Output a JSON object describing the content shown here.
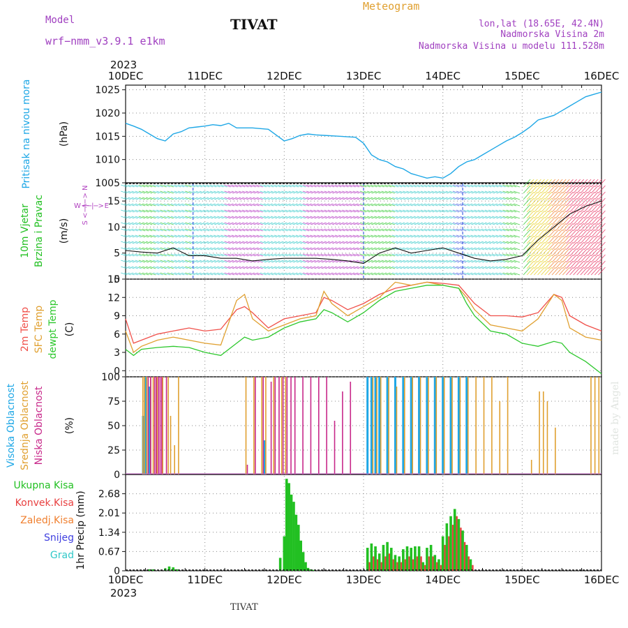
{
  "header": {
    "model_label": "Model",
    "model_name": "wrf−nmm_v3.9.1  e1km",
    "station": "TIVAT",
    "meteogram": "Meteogram",
    "lonlat": "lon,lat (18.65E, 42.4N)",
    "elev": "Nadmorska Visina 2m",
    "elev_model": "Nadmorska Visina u modelu 111.528m",
    "year": "2023",
    "footer_station": "TIVAT",
    "credit": "made by Angel"
  },
  "colors": {
    "pressure": "#1ea7e6",
    "temp": "#f0504a",
    "sfc": "#e0a030",
    "dew": "#2ec82e",
    "high": "#1ea7e6",
    "mid": "#e0a030",
    "low": "#c8288a",
    "precip_total": "#22c022",
    "precip_conv": "#e84040",
    "precip_frozen": "#f08030",
    "precip_snow": "#4040e0",
    "precip_grad": "#30c8c8",
    "wind_label": "#22c022",
    "wind_sub": "#b040c0",
    "purple_text": "#a040c0",
    "orange_text": "#e0a030"
  },
  "chart_data": [
    {
      "id": "pressure",
      "type": "line",
      "ylabel_lines": [
        "Pritisak na nivou mora",
        "(hPa)"
      ],
      "ylim": [
        1005,
        1026
      ],
      "yticks": [
        "1005",
        "1010",
        "1015",
        "1020",
        "1025"
      ],
      "x": [
        0,
        0.1,
        0.2,
        0.3,
        0.4,
        0.5,
        0.6,
        0.7,
        0.8,
        0.9,
        1.0,
        1.1,
        1.2,
        1.3,
        1.4,
        1.5,
        1.6,
        1.8,
        2.0,
        2.1,
        2.2,
        2.3,
        2.4,
        2.5,
        2.7,
        2.9,
        3.0,
        3.1,
        3.2,
        3.3,
        3.4,
        3.5,
        3.6,
        3.7,
        3.8,
        3.9,
        4.0,
        4.1,
        4.2,
        4.3,
        4.4,
        4.5,
        4.6,
        4.7,
        4.8,
        4.9,
        5.0,
        5.1,
        5.2,
        5.3,
        5.4,
        5.5,
        5.6,
        5.7,
        5.8,
        5.9,
        6.0
      ],
      "series": [
        {
          "values": [
            1017.8,
            1017.2,
            1016.5,
            1015.5,
            1014.5,
            1014.0,
            1015.5,
            1016.0,
            1016.8,
            1017.0,
            1017.2,
            1017.5,
            1017.3,
            1017.8,
            1016.8,
            1016.8,
            1016.8,
            1016.5,
            1014.0,
            1014.5,
            1015.2,
            1015.5,
            1015.3,
            1015.2,
            1015.0,
            1014.8,
            1013.5,
            1011.0,
            1010.0,
            1009.5,
            1008.5,
            1008.0,
            1007.0,
            1006.5,
            1006.0,
            1006.3,
            1006.0,
            1007.0,
            1008.5,
            1009.5,
            1010.0,
            1011.0,
            1012.0,
            1013.0,
            1014.0,
            1014.8,
            1015.8,
            1017.0,
            1018.5,
            1019.0,
            1019.5,
            1020.5,
            1021.5,
            1022.5,
            1023.5,
            1024.0,
            1024.5
          ]
        }
      ]
    },
    {
      "id": "wind",
      "type": "line",
      "ylabel_lines": [
        "10m Vjetar",
        "Brzina i Pravac",
        "(m/s)"
      ],
      "dir_legend": "W <−|−> E",
      "dir_legend_v": "S <−|−> N",
      "ylim": [
        0,
        18.5
      ],
      "yticks": [
        "0",
        "5",
        "10",
        "15"
      ],
      "x": [
        0,
        0.2,
        0.4,
        0.6,
        0.8,
        1.0,
        1.2,
        1.4,
        1.6,
        1.8,
        2.0,
        2.2,
        2.4,
        2.6,
        2.8,
        3.0,
        3.2,
        3.4,
        3.6,
        3.8,
        4.0,
        4.2,
        4.4,
        4.6,
        4.8,
        5.0,
        5.2,
        5.4,
        5.6,
        5.8,
        6.0
      ],
      "series": [
        {
          "name": "speed",
          "values": [
            5.5,
            5.2,
            5.0,
            6.0,
            4.5,
            4.5,
            4.0,
            4.0,
            3.5,
            3.8,
            4.0,
            4.0,
            4.0,
            3.8,
            3.5,
            3.0,
            5.0,
            6.0,
            5.0,
            5.5,
            6.0,
            5.0,
            4.0,
            3.5,
            3.8,
            4.5,
            7.5,
            10.0,
            12.5,
            14.0,
            15.0
          ]
        }
      ]
    },
    {
      "id": "temperature",
      "type": "line",
      "ylabel_lines": [
        "2m Temp",
        "SFC Temp",
        "dewpt Temp",
        "(C)"
      ],
      "ylim": [
        -1,
        15
      ],
      "yticks": [
        "0",
        "3",
        "6",
        "9",
        "12",
        "15"
      ],
      "x": [
        0,
        0.1,
        0.2,
        0.4,
        0.6,
        0.8,
        1.0,
        1.2,
        1.4,
        1.5,
        1.6,
        1.8,
        2.0,
        2.2,
        2.4,
        2.5,
        2.6,
        2.8,
        3.0,
        3.2,
        3.4,
        3.6,
        3.8,
        4.0,
        4.2,
        4.3,
        4.4,
        4.6,
        4.8,
        5.0,
        5.2,
        5.4,
        5.5,
        5.6,
        5.8,
        6.0
      ],
      "series": [
        {
          "name": "2m Temp",
          "values": [
            8.5,
            4.5,
            5.0,
            6.0,
            6.5,
            7.0,
            6.5,
            6.8,
            10.0,
            10.5,
            9.5,
            7.0,
            8.5,
            9.0,
            9.5,
            12.0,
            11.5,
            10.0,
            11.0,
            12.5,
            13.5,
            14.0,
            14.5,
            14.3,
            14.0,
            12.5,
            11.0,
            9.0,
            9.0,
            8.8,
            9.5,
            12.5,
            12.0,
            9.0,
            7.5,
            6.5
          ]
        },
        {
          "name": "SFC Temp",
          "values": [
            6.5,
            3.0,
            4.0,
            5.0,
            5.5,
            5.0,
            4.5,
            4.2,
            11.5,
            12.5,
            8.5,
            6.5,
            7.5,
            8.5,
            9.0,
            13.0,
            11.0,
            9.0,
            10.5,
            12.0,
            14.5,
            14.0,
            14.5,
            14.0,
            13.5,
            12.0,
            10.0,
            7.5,
            7.0,
            6.5,
            8.5,
            12.5,
            11.5,
            7.0,
            5.5,
            5.0
          ]
        },
        {
          "name": "dewpt Temp",
          "values": [
            3.5,
            2.5,
            3.5,
            3.8,
            4.0,
            3.8,
            3.0,
            2.5,
            4.5,
            5.5,
            5.0,
            5.5,
            7.0,
            8.0,
            8.5,
            10.0,
            9.5,
            8.0,
            9.5,
            11.5,
            13.0,
            13.5,
            14.0,
            14.0,
            13.5,
            11.0,
            9.0,
            6.5,
            6.0,
            4.5,
            4.0,
            4.8,
            4.5,
            3.0,
            1.5,
            -0.5
          ]
        }
      ]
    },
    {
      "id": "clouds",
      "type": "bar",
      "ylabel_lines": [
        "Visoka Oblacnost",
        "Srednja Oblacnost",
        "Niska Oblacnost",
        "(%)"
      ],
      "ylim": [
        0,
        100
      ],
      "yticks": [
        "0",
        "25",
        "50",
        "75",
        "100"
      ],
      "x": [
        0.1,
        0.2,
        0.22,
        0.25,
        0.28,
        0.3,
        0.33,
        0.35,
        0.38,
        0.4,
        0.42,
        0.45,
        0.48,
        0.52,
        0.55,
        0.6,
        0.65,
        0.7,
        0.75,
        0.85,
        1.1,
        1.5,
        1.6,
        1.7,
        1.75,
        1.8,
        1.85,
        1.9,
        1.95,
        2.0,
        2.05,
        2.1,
        2.2,
        2.3,
        2.4,
        2.5,
        2.6,
        2.7,
        2.8,
        2.95,
        3.05,
        3.1,
        3.15,
        3.2,
        3.3,
        3.4,
        3.5,
        3.6,
        3.7,
        3.8,
        3.9,
        4.0,
        4.1,
        4.2,
        4.3,
        4.4,
        4.5,
        4.6,
        4.7,
        4.8,
        5.1,
        5.2,
        5.25,
        5.3,
        5.4,
        5.85,
        5.9,
        5.95
      ],
      "series": [
        {
          "name": "Visoka Oblacnost",
          "values": [
            0,
            0,
            60,
            100,
            0,
            90,
            0,
            0,
            0,
            0,
            0,
            0,
            0,
            0,
            0,
            0,
            0,
            0,
            0,
            0,
            0,
            0,
            0,
            0,
            35,
            0,
            0,
            0,
            0,
            0,
            0,
            0,
            0,
            0,
            0,
            0,
            0,
            0,
            0,
            0,
            100,
            100,
            100,
            100,
            100,
            100,
            100,
            100,
            100,
            100,
            100,
            100,
            100,
            100,
            100,
            0,
            0,
            0,
            0,
            0,
            0,
            0,
            0,
            0,
            0,
            0,
            0,
            0
          ]
        },
        {
          "name": "Srednja Oblacnost",
          "values": [
            0,
            100,
            100,
            100,
            0,
            100,
            100,
            0,
            100,
            0,
            0,
            100,
            0,
            100,
            60,
            30,
            100,
            0,
            0,
            0,
            0,
            100,
            100,
            100,
            100,
            0,
            100,
            0,
            100,
            100,
            0,
            0,
            0,
            0,
            0,
            0,
            0,
            0,
            0,
            0,
            0,
            100,
            100,
            100,
            100,
            90,
            100,
            100,
            100,
            100,
            100,
            100,
            100,
            100,
            100,
            100,
            100,
            100,
            75,
            100,
            15,
            85,
            85,
            75,
            48,
            100,
            100,
            100
          ]
        },
        {
          "name": "Niska Oblacnost",
          "values": [
            0,
            0,
            0,
            100,
            100,
            0,
            100,
            100,
            100,
            100,
            100,
            0,
            100,
            0,
            0,
            0,
            0,
            0,
            0,
            0,
            0,
            10,
            100,
            100,
            0,
            95,
            100,
            100,
            100,
            100,
            100,
            100,
            100,
            100,
            100,
            100,
            55,
            85,
            95,
            0,
            0,
            0,
            0,
            0,
            0,
            0,
            0,
            0,
            0,
            0,
            0,
            0,
            0,
            0,
            0,
            0,
            0,
            0,
            0,
            0,
            0,
            0,
            0,
            0,
            0,
            0,
            0,
            0
          ]
        }
      ]
    },
    {
      "id": "precip",
      "type": "bar",
      "ylabel_lines": [
        "1hr Precip (mm)"
      ],
      "legend": [
        "Ukupna Kisa",
        "Konvek.Kisa",
        "Zaledj.Kisa",
        "Snijeg",
        "Grad"
      ],
      "ylim": [
        0,
        3.35
      ],
      "yticks": [
        "0",
        "0.67",
        "1.34",
        "2.01",
        "2.68"
      ],
      "x": [
        0.3,
        0.35,
        0.5,
        0.55,
        0.6,
        0.65,
        1.95,
        2.0,
        2.03,
        2.06,
        2.09,
        2.12,
        2.15,
        2.18,
        2.21,
        2.24,
        2.27,
        2.3,
        2.33,
        2.36,
        3.05,
        3.1,
        3.15,
        3.2,
        3.25,
        3.3,
        3.35,
        3.4,
        3.45,
        3.5,
        3.55,
        3.6,
        3.65,
        3.7,
        3.75,
        3.8,
        3.85,
        3.9,
        3.95,
        4.0,
        4.05,
        4.1,
        4.15,
        4.2,
        4.25,
        4.3,
        4.35
      ],
      "series": [
        {
          "name": "Ukupna Kisa",
          "values": [
            0.05,
            0.05,
            0.08,
            0.15,
            0.12,
            0.05,
            0.45,
            1.2,
            3.2,
            3.05,
            2.65,
            2.4,
            1.95,
            1.6,
            1.05,
            0.65,
            0.3,
            0.1,
            0.05,
            0.03,
            0.8,
            0.95,
            0.85,
            0.6,
            0.9,
            1.0,
            0.8,
            0.55,
            0.5,
            0.75,
            0.85,
            0.8,
            0.85,
            0.85,
            0.3,
            0.8,
            0.9,
            0.55,
            0.4,
            1.2,
            1.65,
            1.9,
            2.15,
            1.8,
            1.4,
            0.9,
            0.4
          ]
        },
        {
          "name": "Konvek.Kisa",
          "values": [
            0,
            0,
            0,
            0,
            0,
            0,
            0,
            0,
            0,
            0,
            0,
            0,
            0,
            0,
            0,
            0,
            0,
            0,
            0,
            0,
            0.3,
            0.5,
            0.4,
            0.3,
            0.5,
            0.6,
            0.4,
            0.3,
            0.3,
            0.4,
            0.5,
            0.4,
            0.5,
            0.5,
            0.2,
            0.5,
            0.5,
            0.3,
            0.2,
            0.9,
            1.2,
            1.6,
            1.9,
            1.5,
            1.0,
            0.5,
            0.2
          ]
        }
      ]
    }
  ],
  "xaxis": {
    "labels": [
      "10DEC",
      "11DEC",
      "12DEC",
      "13DEC",
      "14DEC",
      "15DEC",
      "16DEC"
    ],
    "range": [
      0,
      6
    ]
  }
}
